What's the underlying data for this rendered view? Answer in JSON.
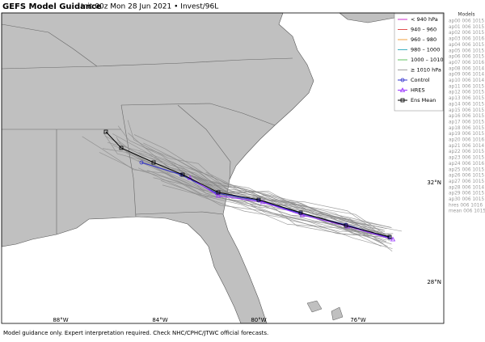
{
  "header": {
    "title": "GEFS Model Guidance",
    "subtitle": "Init 00z Mon 28 Jun 2021 • Invest/96L"
  },
  "legend": {
    "items": [
      {
        "label": "< 940 hPa",
        "color": "#cc33cc",
        "kind": "line"
      },
      {
        "label": "940 – 960",
        "color": "#e05050",
        "kind": "line"
      },
      {
        "label": "960 – 980",
        "color": "#f0a040",
        "kind": "line"
      },
      {
        "label": "980 – 1000",
        "color": "#40b0c0",
        "kind": "line"
      },
      {
        "label": "1000 – 1010",
        "color": "#60c060",
        "kind": "line"
      },
      {
        "label": "≥ 1010 hPa",
        "color": "#a0a0a0",
        "kind": "line"
      },
      {
        "label": "Control",
        "color": "#3333cc",
        "kind": "circle"
      },
      {
        "label": "HRES",
        "color": "#9933ff",
        "kind": "triangle"
      },
      {
        "label": "Ens Mean",
        "color": "#000000",
        "kind": "square"
      }
    ]
  },
  "models": {
    "title": "Models",
    "list": [
      "ap00 006 1015",
      "ap01 006 1015",
      "ap02 006 1015",
      "ap03 006 1016",
      "ap04 006 1015",
      "ap05 006 1015",
      "ap06 006 1015",
      "ap07 006 1016",
      "ap08 006 1014",
      "ap09 006 1014",
      "ap10 006 1014",
      "ap11 006 1015",
      "ap12 006 1015",
      "ap13 006 1015",
      "ap14 006 1015",
      "ap15 006 1015",
      "ap16 006 1015",
      "ap17 006 1015",
      "ap18 006 1015",
      "ap19 006 1015",
      "ap20 006 1016",
      "ap21 006 1014",
      "ap22 006 1015",
      "ap23 006 1015",
      "ap24 006 1016",
      "ap25 006 1015",
      "ap26 006 1015",
      "ap27 006 1015",
      "ap28 006 1014",
      "ap29 006 1015",
      "ap30 006 1015",
      "hres 006 1016",
      "mean 006 1015"
    ]
  },
  "axes": {
    "lon_labels": [
      "88°W",
      "84°W",
      "80°W",
      "76°W"
    ],
    "lat_labels": [
      "32°N",
      "28°N"
    ]
  },
  "footer": "Model guidance only. Expert interpretation required. Check NHC/CPHC/JTWC official forecasts."
}
